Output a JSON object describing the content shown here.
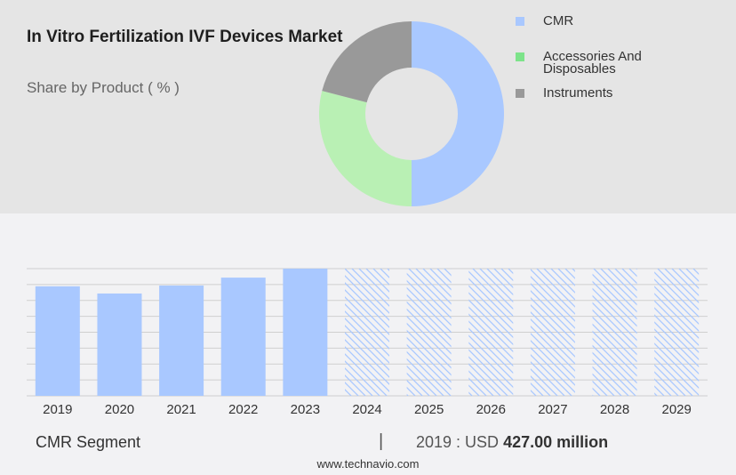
{
  "header": {
    "title": "In Vitro Fertilization IVF Devices Market",
    "subtitle": "Share by Product ( % )"
  },
  "chart_data": [
    {
      "type": "pie",
      "variant": "donut",
      "labels": [
        "CMR",
        "Accessories And Disposables",
        "Instruments"
      ],
      "values": [
        50,
        29,
        21
      ],
      "colors": [
        "#a9c8ff",
        "#b9f0b4",
        "#999999"
      ],
      "legend_colors": [
        "#a9c8ff",
        "#7de38a",
        "#999999"
      ],
      "legend_position": "right"
    },
    {
      "type": "bar",
      "categories": [
        "2019",
        "2020",
        "2021",
        "2022",
        "2023",
        "2024",
        "2025",
        "2026",
        "2027",
        "2028",
        "2029"
      ],
      "values": [
        427,
        399,
        430,
        461,
        496,
        null,
        null,
        null,
        null,
        null,
        null
      ],
      "forecast_categories": [
        "2024",
        "2025",
        "2026",
        "2027",
        "2028",
        "2029"
      ],
      "ylim": [
        0,
        496
      ],
      "grid": true,
      "bar_color": "#a9c8ff",
      "forecast_style": "hatched",
      "forecast_color": "#a9c8ff"
    }
  ],
  "footer": {
    "segment_label": "CMR Segment",
    "divider": "|",
    "year_prefix": "2019 : USD",
    "value_text": "427.00 million",
    "source": "www.technavio.com"
  }
}
